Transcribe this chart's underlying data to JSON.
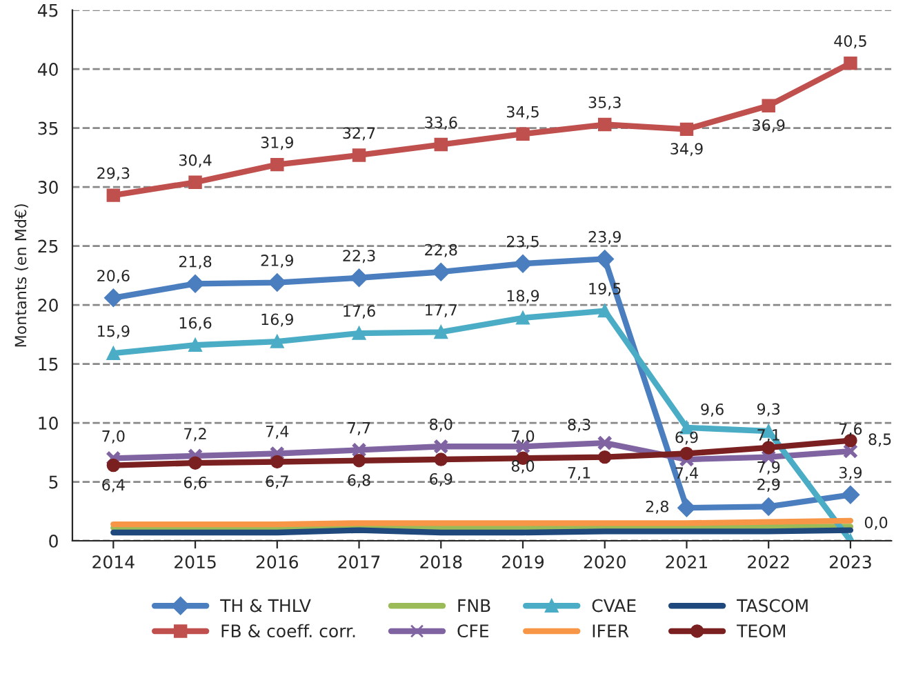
{
  "chart_data": {
    "type": "line",
    "ylabel": "Montants (en Md€)",
    "categories": [
      "2014",
      "2015",
      "2016",
      "2017",
      "2018",
      "2019",
      "2020",
      "2021",
      "2022",
      "2023"
    ],
    "ylim": [
      0,
      45
    ],
    "yticks": [
      0,
      5,
      10,
      15,
      20,
      25,
      30,
      35,
      40,
      45
    ],
    "grid": "y",
    "legend": "bottom",
    "series": [
      {
        "name": "TH & THLV",
        "color": "#4a7ebf",
        "marker": "diamond",
        "values": [
          20.6,
          21.8,
          21.9,
          22.3,
          22.8,
          23.5,
          23.9,
          2.8,
          2.9,
          3.9
        ],
        "value_labels": [
          "20,6",
          "21,8",
          "21,9",
          "22,3",
          "22,8",
          "23,5",
          "23,9",
          "2,8",
          "2,9",
          "3,9"
        ]
      },
      {
        "name": "FB & coeff. corr.",
        "color": "#c0504d",
        "marker": "square",
        "values": [
          29.3,
          30.4,
          31.9,
          32.7,
          33.6,
          34.5,
          35.3,
          34.9,
          36.9,
          40.5
        ],
        "value_labels": [
          "29,3",
          "30,4",
          "31,9",
          "32,7",
          "33,6",
          "34,5",
          "35,3",
          "34,9",
          "36,9",
          "40,5"
        ]
      },
      {
        "name": "FNB",
        "color": "#9bbb59",
        "marker": "none",
        "values": [
          1.1,
          1.1,
          1.1,
          1.1,
          1.1,
          1.1,
          1.1,
          1.1,
          1.2,
          1.2
        ]
      },
      {
        "name": "CFE",
        "color": "#8064a2",
        "marker": "cross",
        "values": [
          7.0,
          7.2,
          7.4,
          7.7,
          8.0,
          8.0,
          8.3,
          6.9,
          7.1,
          7.6
        ],
        "value_labels": [
          "7,0",
          "7,2",
          "7,4",
          "7,7",
          "8,0",
          "8,0",
          "8,3",
          "6,9",
          "7,1",
          "7,6"
        ]
      },
      {
        "name": "CVAE",
        "color": "#4bacc6",
        "marker": "triangle",
        "values": [
          15.9,
          16.6,
          16.9,
          17.6,
          17.7,
          18.9,
          19.5,
          9.6,
          9.3,
          0.0
        ],
        "value_labels": [
          "15,9",
          "16,6",
          "16,9",
          "17,6",
          "17,7",
          "18,9",
          "19,5",
          "9,6",
          "9,3",
          "0,0"
        ]
      },
      {
        "name": "IFER",
        "color": "#f79646",
        "marker": "none",
        "values": [
          1.4,
          1.4,
          1.4,
          1.5,
          1.5,
          1.5,
          1.5,
          1.5,
          1.6,
          1.7
        ]
      },
      {
        "name": "TASCOM",
        "color": "#1f497d",
        "marker": "none",
        "values": [
          0.7,
          0.7,
          0.7,
          0.9,
          0.7,
          0.7,
          0.8,
          0.8,
          0.8,
          0.9
        ]
      },
      {
        "name": "TEOM",
        "color": "#7b2020",
        "marker": "circle",
        "values": [
          6.4,
          6.6,
          6.7,
          6.8,
          6.9,
          7.0,
          7.1,
          7.4,
          7.9,
          8.5
        ],
        "value_labels": [
          "6,4",
          "6,6",
          "6,7",
          "6,8",
          "6,9",
          "7,0",
          "7,1",
          "7,4",
          "7,9",
          "8,5"
        ]
      }
    ]
  }
}
